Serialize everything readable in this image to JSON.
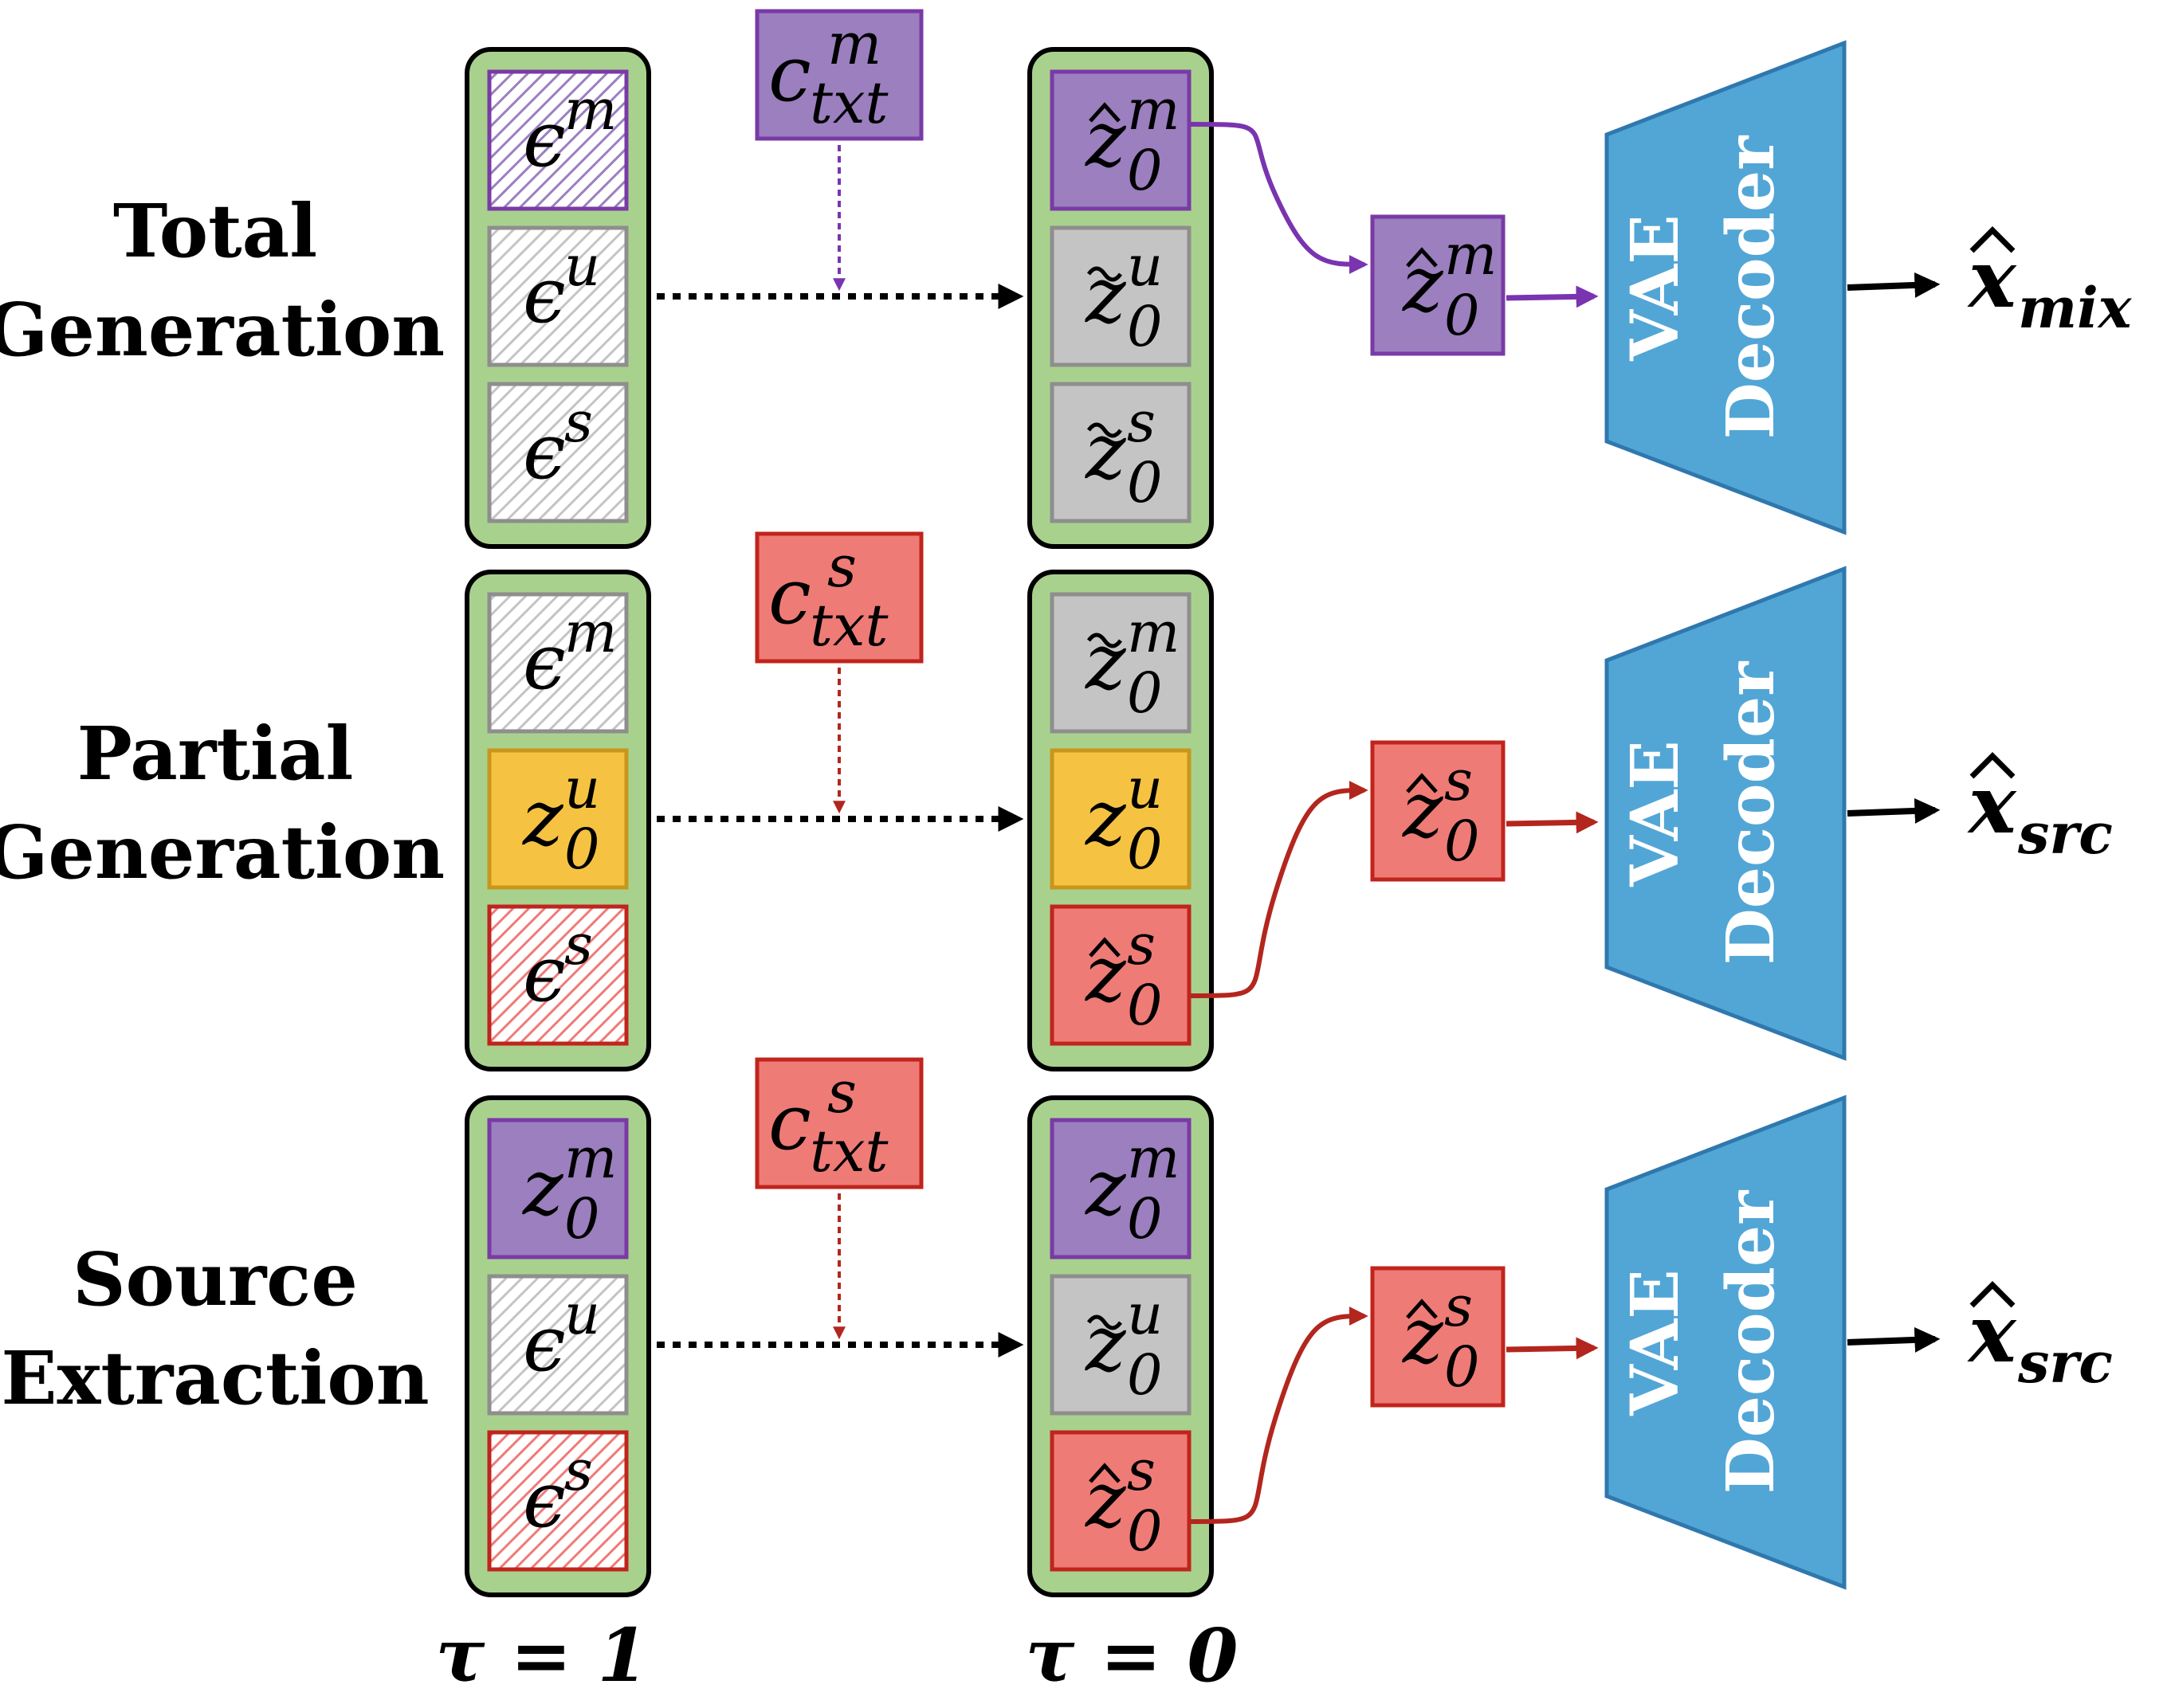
{
  "rows": [
    {
      "label_lines": [
        "Total",
        "Generation"
      ],
      "condition": {
        "base": "c",
        "sup": "m",
        "sub": "txt",
        "color": "purple"
      },
      "input": [
        {
          "glyph": "ϵ",
          "sup": "m",
          "sub": "",
          "accent": "",
          "fill": "purple",
          "hatched": true
        },
        {
          "glyph": "ϵ",
          "sup": "u",
          "sub": "",
          "accent": "",
          "fill": "gray",
          "hatched": true
        },
        {
          "glyph": "ϵ",
          "sup": "s",
          "sub": "",
          "accent": "",
          "fill": "gray",
          "hatched": true
        }
      ],
      "output": [
        {
          "glyph": "z",
          "sup": "m",
          "sub": "0",
          "accent": "^",
          "fill": "purple",
          "hatched": false
        },
        {
          "glyph": "z",
          "sup": "u",
          "sub": "0",
          "accent": "~",
          "fill": "gray",
          "hatched": false
        },
        {
          "glyph": "z",
          "sup": "s",
          "sub": "0",
          "accent": "~",
          "fill": "gray",
          "hatched": false
        }
      ],
      "selected_index": 0,
      "selected": {
        "glyph": "z",
        "sup": "m",
        "sub": "0",
        "accent": "^",
        "fill": "purple"
      },
      "decoder_lines": [
        "VAE",
        "Decoder"
      ],
      "result": {
        "glyph": "x",
        "sub": "mix",
        "accent": "^"
      }
    },
    {
      "label_lines": [
        "Partial",
        "Generation"
      ],
      "condition": {
        "base": "c",
        "sup": "s",
        "sub": "txt",
        "color": "red"
      },
      "input": [
        {
          "glyph": "ϵ",
          "sup": "m",
          "sub": "",
          "accent": "",
          "fill": "gray",
          "hatched": true
        },
        {
          "glyph": "z",
          "sup": "u",
          "sub": "0",
          "accent": "",
          "fill": "yellow",
          "hatched": false
        },
        {
          "glyph": "ϵ",
          "sup": "s",
          "sub": "",
          "accent": "",
          "fill": "red",
          "hatched": true
        }
      ],
      "output": [
        {
          "glyph": "z",
          "sup": "m",
          "sub": "0",
          "accent": "~",
          "fill": "gray",
          "hatched": false
        },
        {
          "glyph": "z",
          "sup": "u",
          "sub": "0",
          "accent": "",
          "fill": "yellow",
          "hatched": false
        },
        {
          "glyph": "z",
          "sup": "s",
          "sub": "0",
          "accent": "^",
          "fill": "red",
          "hatched": false
        }
      ],
      "selected_index": 2,
      "selected": {
        "glyph": "z",
        "sup": "s",
        "sub": "0",
        "accent": "^",
        "fill": "red"
      },
      "decoder_lines": [
        "VAE",
        "Decoder"
      ],
      "result": {
        "glyph": "x",
        "sub": "src",
        "accent": "^"
      }
    },
    {
      "label_lines": [
        "Source",
        "Extraction"
      ],
      "condition": {
        "base": "c",
        "sup": "s",
        "sub": "txt",
        "color": "red"
      },
      "input": [
        {
          "glyph": "z",
          "sup": "m",
          "sub": "0",
          "accent": "",
          "fill": "purple",
          "hatched": false
        },
        {
          "glyph": "ϵ",
          "sup": "u",
          "sub": "",
          "accent": "",
          "fill": "gray",
          "hatched": true
        },
        {
          "glyph": "ϵ",
          "sup": "s",
          "sub": "",
          "accent": "",
          "fill": "red",
          "hatched": true
        }
      ],
      "output": [
        {
          "glyph": "z",
          "sup": "m",
          "sub": "0",
          "accent": "",
          "fill": "purple",
          "hatched": false
        },
        {
          "glyph": "z",
          "sup": "u",
          "sub": "0",
          "accent": "~",
          "fill": "gray",
          "hatched": false
        },
        {
          "glyph": "z",
          "sup": "s",
          "sub": "0",
          "accent": "^",
          "fill": "red",
          "hatched": false
        }
      ],
      "selected_index": 2,
      "selected": {
        "glyph": "z",
        "sup": "s",
        "sub": "0",
        "accent": "^",
        "fill": "red"
      },
      "decoder_lines": [
        "VAE",
        "Decoder"
      ],
      "result": {
        "glyph": "x",
        "sub": "src",
        "accent": "^"
      }
    }
  ],
  "timesteps": {
    "input": "τ = 1",
    "output": "τ = 0"
  },
  "colors": {
    "purple": "#9b7fbf",
    "purple_edge": "#7a3aa6",
    "purple_arrow": "#7a34b0",
    "red": "#ef7b76",
    "red_edge": "#c0241c",
    "red_arrow": "#b3261e",
    "gray": "#c4c4c4",
    "gray_edge": "#8e8e8e",
    "yellow": "#f5c242",
    "yellow_edge": "#c8961c",
    "group": "#a9d18e",
    "decoder": "#52a6d6",
    "decoder_edge": "#2f78ae"
  }
}
